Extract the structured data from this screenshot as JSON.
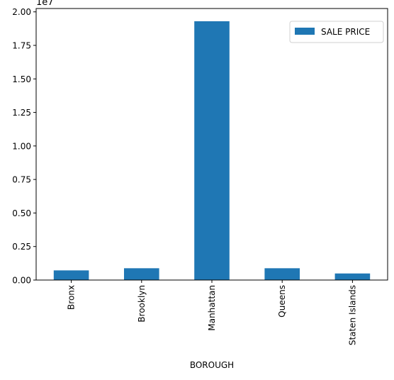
{
  "chart_data": {
    "type": "bar",
    "categories": [
      "Bronx",
      "Brooklyn",
      "Manhattan",
      "Queens",
      "Staten Islands"
    ],
    "series": [
      {
        "name": "SALE PRICE",
        "values": [
          720000,
          880000,
          19300000,
          880000,
          490000
        ],
        "color": "#1f77b4"
      }
    ],
    "xlabel": "BOROUGH",
    "ylabel": "",
    "ylim": [
      0,
      20250000
    ],
    "y_ticks": [
      0,
      2500000,
      5000000,
      7500000,
      10000000,
      12500000,
      15000000,
      17500000,
      20000000
    ],
    "y_tick_labels": [
      "0.00",
      "0.25",
      "0.50",
      "0.75",
      "1.00",
      "1.25",
      "1.50",
      "1.75",
      "2.00"
    ],
    "y_offset_label": "1e7",
    "grid": false,
    "legend": {
      "position": "top-right",
      "entries": [
        "SALE PRICE"
      ]
    }
  }
}
